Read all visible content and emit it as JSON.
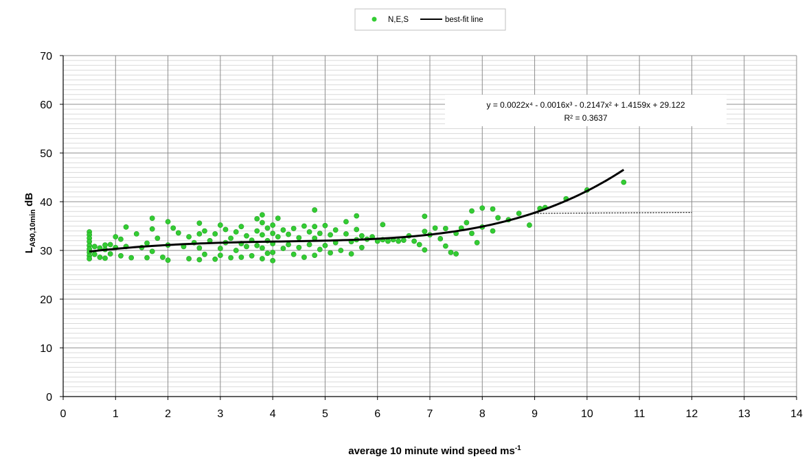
{
  "chart_data": {
    "type": "scatter",
    "xlabel": "average 10 minute wind speed ms",
    "xlabel_superscript": "-1",
    "ylabel_main": "L",
    "ylabel_subscript": "A90,10min",
    "ylabel_suffix": " dB",
    "xlim": [
      0,
      14
    ],
    "ylim": [
      0,
      70
    ],
    "x_ticks": [
      "0",
      "1",
      "2",
      "3",
      "4",
      "5",
      "6",
      "7",
      "8",
      "9",
      "10",
      "11",
      "12",
      "13",
      "14"
    ],
    "y_ticks": [
      "0",
      "10",
      "20",
      "30",
      "40",
      "50",
      "60",
      "70"
    ],
    "grid": true,
    "minor_grid": true,
    "legend_position": "top-center",
    "colors": {
      "points": "#33cc33",
      "fit": "#000000",
      "grid": "#a0a0a0"
    },
    "series": [
      {
        "name": "N,E,S",
        "kind": "scatter",
        "points": [
          [
            0.5,
            33.8
          ],
          [
            0.5,
            33.2
          ],
          [
            0.5,
            32.5
          ],
          [
            0.5,
            31.8
          ],
          [
            0.5,
            31.0
          ],
          [
            0.5,
            30.3
          ],
          [
            0.5,
            29.6
          ],
          [
            0.5,
            28.9
          ],
          [
            0.5,
            28.3
          ],
          [
            0.6,
            30.8
          ],
          [
            0.6,
            29.2
          ],
          [
            0.7,
            30.5
          ],
          [
            0.7,
            28.6
          ],
          [
            0.8,
            31.1
          ],
          [
            0.8,
            30.2
          ],
          [
            0.8,
            28.4
          ],
          [
            0.9,
            31.2
          ],
          [
            0.9,
            29.3
          ],
          [
            1.0,
            32.8
          ],
          [
            1.0,
            30.6
          ],
          [
            1.1,
            32.3
          ],
          [
            1.1,
            28.9
          ],
          [
            1.2,
            34.8
          ],
          [
            1.2,
            30.8
          ],
          [
            1.3,
            28.5
          ],
          [
            1.4,
            33.4
          ],
          [
            1.5,
            30.6
          ],
          [
            1.6,
            31.5
          ],
          [
            1.6,
            28.5
          ],
          [
            1.7,
            36.6
          ],
          [
            1.7,
            34.4
          ],
          [
            1.7,
            29.8
          ],
          [
            1.8,
            32.5
          ],
          [
            1.9,
            28.6
          ],
          [
            2.0,
            35.9
          ],
          [
            2.0,
            31.1
          ],
          [
            2.0,
            28.0
          ],
          [
            2.1,
            34.6
          ],
          [
            2.2,
            33.6
          ],
          [
            2.3,
            30.8
          ],
          [
            2.4,
            32.8
          ],
          [
            2.4,
            28.3
          ],
          [
            2.5,
            31.6
          ],
          [
            2.6,
            35.6
          ],
          [
            2.6,
            33.4
          ],
          [
            2.6,
            30.5
          ],
          [
            2.6,
            28.1
          ],
          [
            2.7,
            34.0
          ],
          [
            2.7,
            29.2
          ],
          [
            2.8,
            32.0
          ],
          [
            2.9,
            33.4
          ],
          [
            2.9,
            28.2
          ],
          [
            3.0,
            35.2
          ],
          [
            3.0,
            30.4
          ],
          [
            3.0,
            29.0
          ],
          [
            3.1,
            34.3
          ],
          [
            3.1,
            31.6
          ],
          [
            3.2,
            32.5
          ],
          [
            3.2,
            28.5
          ],
          [
            3.3,
            33.8
          ],
          [
            3.3,
            30.0
          ],
          [
            3.4,
            34.9
          ],
          [
            3.4,
            31.4
          ],
          [
            3.4,
            28.6
          ],
          [
            3.5,
            33.0
          ],
          [
            3.5,
            30.8
          ],
          [
            3.6,
            32.1
          ],
          [
            3.6,
            28.9
          ],
          [
            3.7,
            36.5
          ],
          [
            3.7,
            34.0
          ],
          [
            3.7,
            31.0
          ],
          [
            3.8,
            37.3
          ],
          [
            3.8,
            35.7
          ],
          [
            3.8,
            33.2
          ],
          [
            3.8,
            30.5
          ],
          [
            3.8,
            28.3
          ],
          [
            3.9,
            34.6
          ],
          [
            3.9,
            32.0
          ],
          [
            3.9,
            29.4
          ],
          [
            4.0,
            35.2
          ],
          [
            4.0,
            33.5
          ],
          [
            4.0,
            31.4
          ],
          [
            4.0,
            29.6
          ],
          [
            4.0,
            27.9
          ],
          [
            4.1,
            36.6
          ],
          [
            4.1,
            32.8
          ],
          [
            4.2,
            34.2
          ],
          [
            4.2,
            30.4
          ],
          [
            4.3,
            33.3
          ],
          [
            4.3,
            31.2
          ],
          [
            4.4,
            34.5
          ],
          [
            4.4,
            29.2
          ],
          [
            4.5,
            32.6
          ],
          [
            4.5,
            30.6
          ],
          [
            4.6,
            35.0
          ],
          [
            4.6,
            28.6
          ],
          [
            4.7,
            33.8
          ],
          [
            4.7,
            31.2
          ],
          [
            4.8,
            38.3
          ],
          [
            4.8,
            34.9
          ],
          [
            4.8,
            32.5
          ],
          [
            4.8,
            29.0
          ],
          [
            4.9,
            33.5
          ],
          [
            4.9,
            30.2
          ],
          [
            5.0,
            35.1
          ],
          [
            5.0,
            31.0
          ],
          [
            5.1,
            33.2
          ],
          [
            5.1,
            29.5
          ],
          [
            5.2,
            34.2
          ],
          [
            5.2,
            31.6
          ],
          [
            5.3,
            30.0
          ],
          [
            5.4,
            33.4
          ],
          [
            5.4,
            35.9
          ],
          [
            5.5,
            31.8
          ],
          [
            5.5,
            29.3
          ],
          [
            5.6,
            37.1
          ],
          [
            5.6,
            34.3
          ],
          [
            5.6,
            32.2
          ],
          [
            5.7,
            33.0
          ],
          [
            5.7,
            30.6
          ],
          [
            5.8,
            32.3
          ],
          [
            5.9,
            32.8
          ],
          [
            6.0,
            31.9
          ],
          [
            6.1,
            35.3
          ],
          [
            6.1,
            32.2
          ],
          [
            6.2,
            31.9
          ],
          [
            6.3,
            32.2
          ],
          [
            6.4,
            31.9
          ],
          [
            6.5,
            32.1
          ],
          [
            6.6,
            33.0
          ],
          [
            6.7,
            31.9
          ],
          [
            6.8,
            31.2
          ],
          [
            6.9,
            37.0
          ],
          [
            6.9,
            33.9
          ],
          [
            6.9,
            30.1
          ],
          [
            7.0,
            33.2
          ],
          [
            7.1,
            34.6
          ],
          [
            7.2,
            32.4
          ],
          [
            7.3,
            34.5
          ],
          [
            7.3,
            30.9
          ],
          [
            7.4,
            29.6
          ],
          [
            7.5,
            33.5
          ],
          [
            7.5,
            29.3
          ],
          [
            7.6,
            34.6
          ],
          [
            7.7,
            35.7
          ],
          [
            7.8,
            33.5
          ],
          [
            7.8,
            38.1
          ],
          [
            7.9,
            31.6
          ],
          [
            8.0,
            38.7
          ],
          [
            8.0,
            34.8
          ],
          [
            8.2,
            38.5
          ],
          [
            8.2,
            34.0
          ],
          [
            8.3,
            36.7
          ],
          [
            8.5,
            36.3
          ],
          [
            8.7,
            37.6
          ],
          [
            8.9,
            35.2
          ],
          [
            9.1,
            38.6
          ],
          [
            9.2,
            38.8
          ],
          [
            9.6,
            40.6
          ],
          [
            10.0,
            42.4
          ],
          [
            10.7,
            44.0
          ]
        ]
      },
      {
        "name": "best-fit line",
        "kind": "polynomial-fit",
        "coefficients": [
          0.0022,
          -0.0016,
          -0.2147,
          1.4159,
          29.122
        ],
        "x_range": [
          0.5,
          10.7
        ]
      },
      {
        "kind": "dotted-extension",
        "points": [
          [
            9.0,
            37.6
          ],
          [
            12.0,
            37.8
          ]
        ]
      }
    ],
    "annotation": {
      "equation": "y = 0.0022x⁴ - 0.0016x³ - 0.2147x² + 1.4159x + 29.122",
      "r2": "R² = 0.3637"
    }
  }
}
